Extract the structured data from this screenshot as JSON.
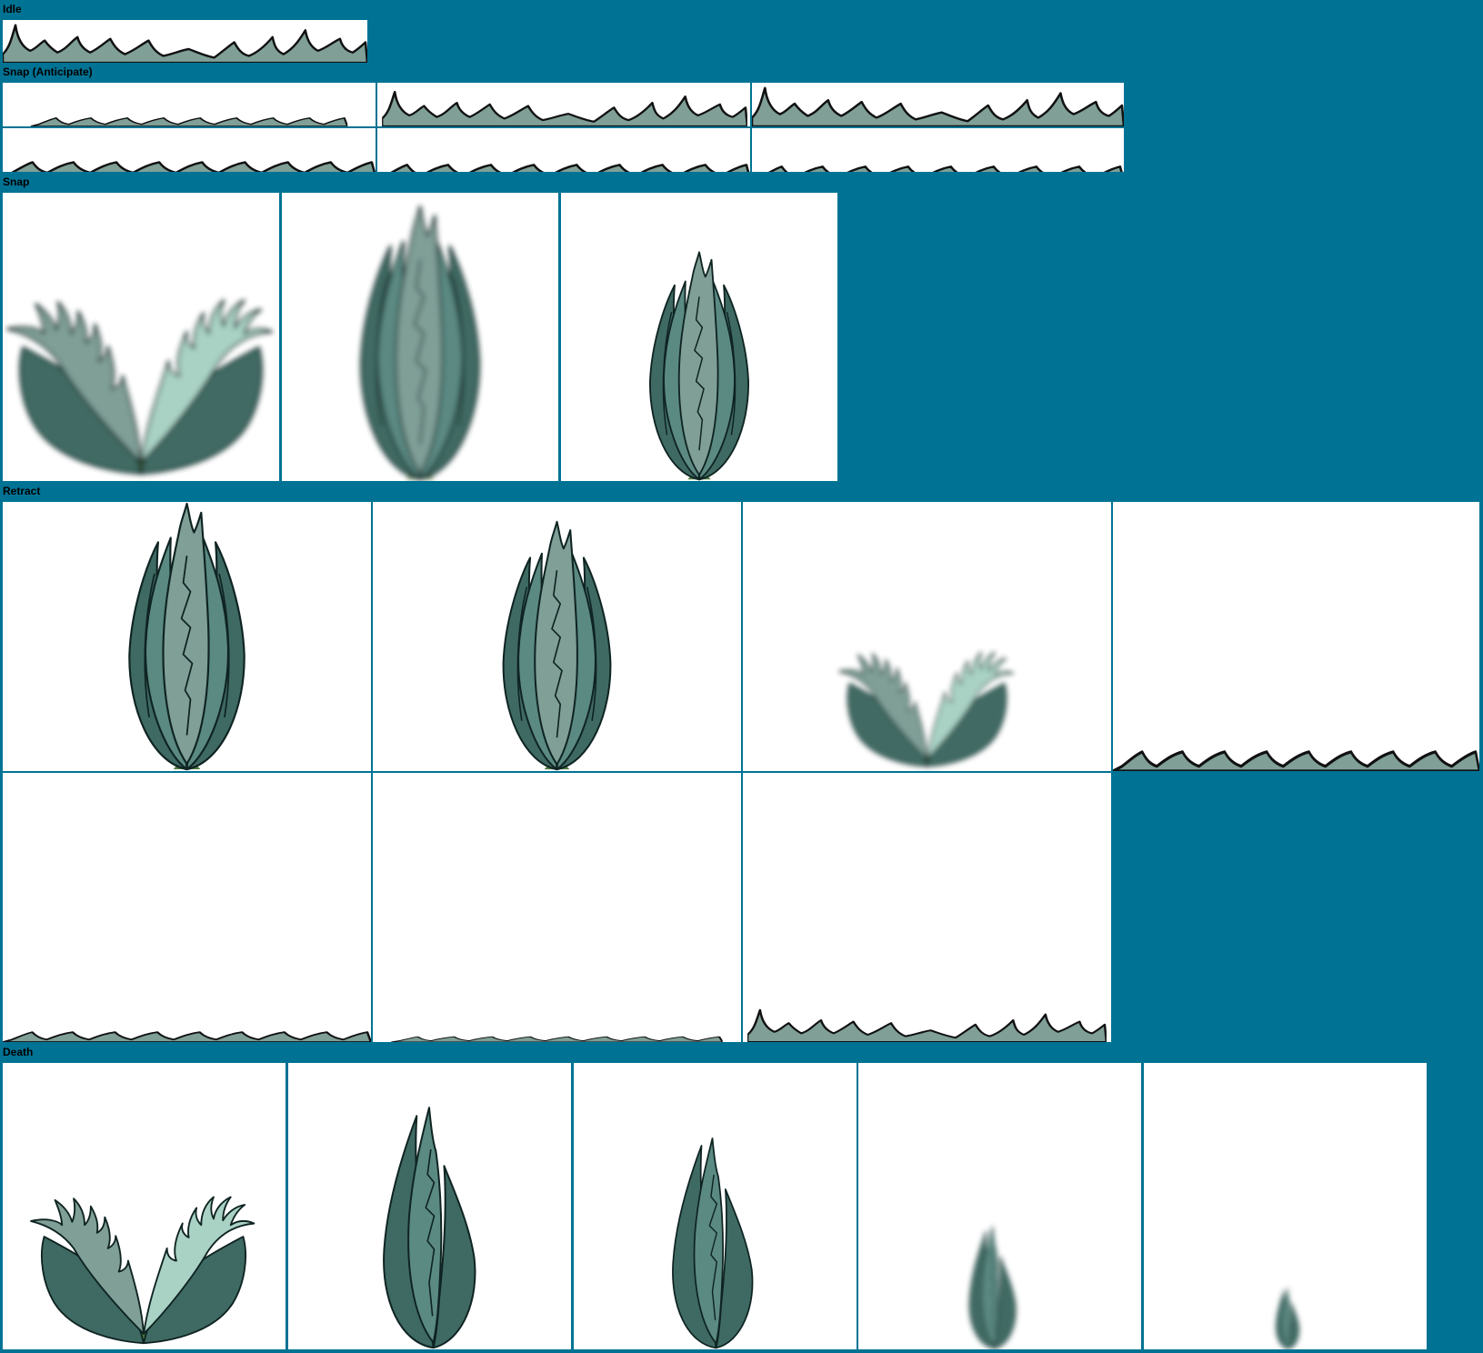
{
  "sections": {
    "idle": {
      "label": "Idle"
    },
    "snap_anticipate": {
      "label": "Snap (Anticipate)"
    },
    "snap": {
      "label": "Snap"
    },
    "retract": {
      "label": "Retract"
    },
    "death": {
      "label": "Death"
    }
  },
  "colors": {
    "background": "#007394",
    "frame": "#ffffff",
    "leaf_dark": "#3f6a64",
    "leaf_light": "#7f9f97",
    "leaf_pale": "#a9d1c4",
    "outline": "#0f2422",
    "stem": "#4f7a3f"
  },
  "frame_counts": {
    "idle": 1,
    "snap_anticipate": 6,
    "snap": 3,
    "retract": 7,
    "death": 5
  }
}
